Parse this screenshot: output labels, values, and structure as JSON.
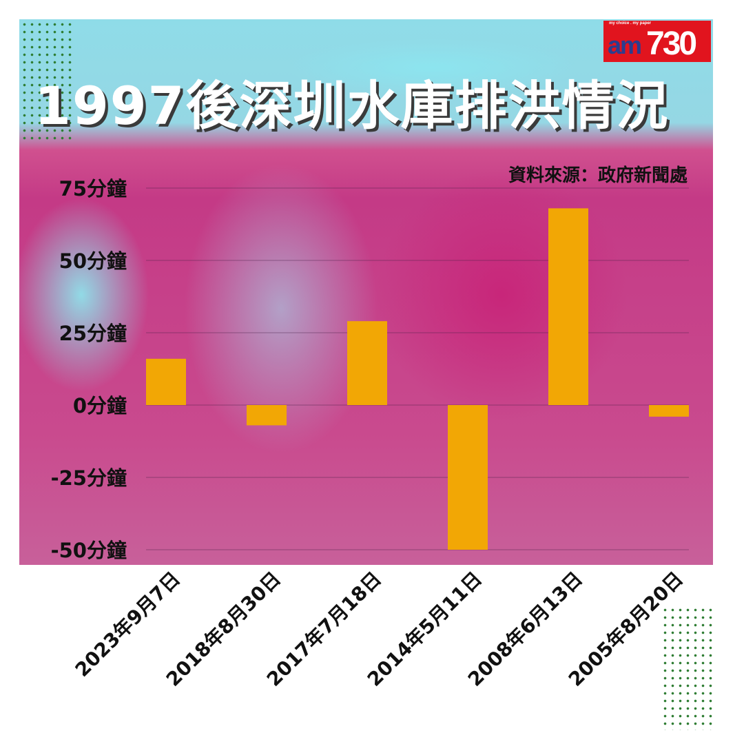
{
  "title": "1997後深圳水庫排洪情況",
  "source": "資料來源：政府新聞處",
  "logo": "am730",
  "colors": {
    "bar": "#f2a705",
    "background_pink": "#c43a86",
    "background_cyan": "#8fdce8",
    "logo_red": "#e1141e"
  },
  "chart_data": {
    "type": "bar",
    "title": "1997後深圳水庫排洪情況",
    "categories": [
      "2023年9月7日",
      "2018年8月30日",
      "2017年7月18日",
      "2014年5月11日",
      "2008年6月13日",
      "2005年8月20日"
    ],
    "values": [
      16,
      -7,
      29,
      -50,
      68,
      -4
    ],
    "ylim": [
      -50,
      75
    ],
    "yticks": [
      75,
      50,
      25,
      0,
      -25,
      -50
    ],
    "ytick_labels": [
      "75分鐘",
      "50分鐘",
      "25分鐘",
      "0分鐘",
      "-25分鐘",
      "-50分鐘"
    ],
    "grid": true,
    "xlabel": "",
    "ylabel": ""
  }
}
